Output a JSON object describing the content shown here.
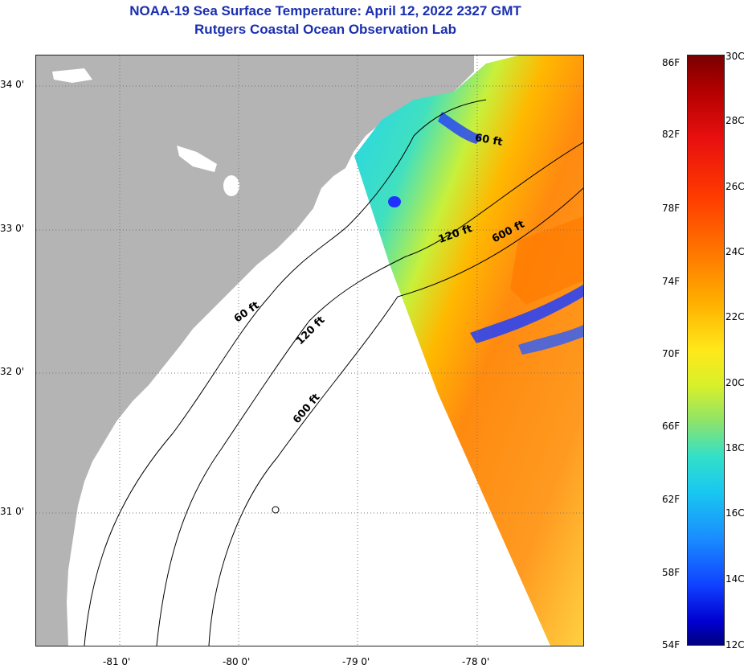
{
  "title_line1": "NOAA-19 Sea Surface Temperature:  April 12, 2022 2327 GMT",
  "title_line2": "Rutgers Coastal Ocean Observation Lab",
  "map": {
    "lat_ticks": [
      "34 0'",
      "33 0'",
      "32 0'",
      "31 0'"
    ],
    "lon_ticks": [
      "-81 0'",
      "-80 0'",
      "-79 0'",
      "-78 0'"
    ],
    "contours": [
      "60 ft",
      "120 ft",
      "600 ft",
      "60 ft",
      "120 ft",
      "600 ft"
    ],
    "land_color": "#b4b4b4",
    "nodata_color": "#ffffff"
  },
  "colorbar": {
    "fahrenheit": [
      "86F",
      "82F",
      "78F",
      "74F",
      "70F",
      "66F",
      "62F",
      "58F",
      "54F"
    ],
    "celsius": [
      "30C",
      "28C",
      "26C",
      "24C",
      "22C",
      "20C",
      "18C",
      "16C",
      "14C",
      "12C"
    ]
  }
}
